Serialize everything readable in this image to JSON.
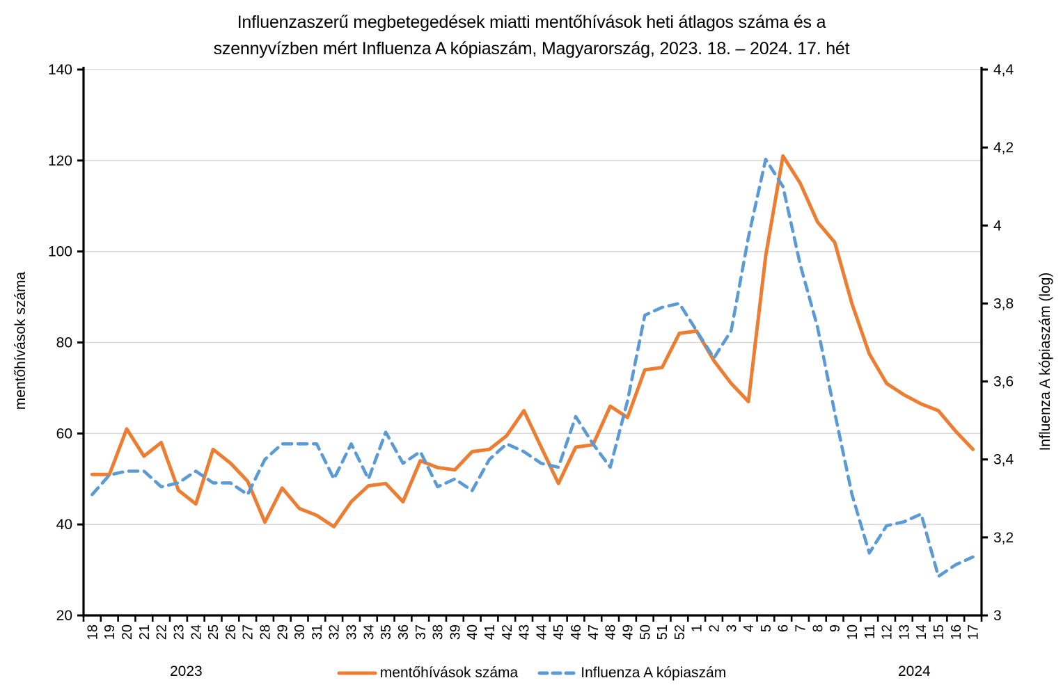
{
  "title": {
    "line1": "Influenzaszerű megbetegedések miatti mentőhívások heti átlagos száma és a",
    "line2": "szennyvízben mért Influenza A kópiaszám, Magyarország, 2023. 18. – 2024. 17. hét"
  },
  "axes": {
    "left": {
      "title": "mentőhívások száma",
      "ticks": [
        {
          "label": "20",
          "value": 20
        },
        {
          "label": "40",
          "value": 40
        },
        {
          "label": "60",
          "value": 60
        },
        {
          "label": "80",
          "value": 80
        },
        {
          "label": "100",
          "value": 100
        },
        {
          "label": "120",
          "value": 120
        },
        {
          "label": "140",
          "value": 140
        }
      ]
    },
    "right": {
      "title": "Influenza A kópiaszám (log)",
      "ticks": [
        {
          "label": "3",
          "value": 3
        },
        {
          "label": "3,2",
          "value": 3.2
        },
        {
          "label": "3,4",
          "value": 3.4
        },
        {
          "label": "3,6",
          "value": 3.6
        },
        {
          "label": "3,8",
          "value": 3.8
        },
        {
          "label": "4",
          "value": 4
        },
        {
          "label": "4,2",
          "value": 4.2
        },
        {
          "label": "4,4",
          "value": 4.4
        }
      ]
    },
    "x": {
      "year_left": "2023",
      "year_right": "2024"
    }
  },
  "legend": [
    {
      "label": "mentőhívások száma",
      "style": "solid",
      "color": "#ED7D31"
    },
    {
      "label": "Influenza A kópiaszám",
      "style": "dashed",
      "color": "#5B9BD5"
    }
  ],
  "colors": {
    "orange": "#ED7D31",
    "blue": "#5B9BD5",
    "gridline": "#D9D9D9",
    "axis": "#000000"
  },
  "chart_data": {
    "type": "line",
    "title": "Influenzaszerű megbetegedések miatti mentőhívások heti átlagos száma és a szennyvízben mért Influenza A kópiaszám, Magyarország, 2023. 18. – 2024. 17. hét",
    "categories": [
      "18",
      "19",
      "20",
      "21",
      "22",
      "23",
      "24",
      "25",
      "26",
      "27",
      "28",
      "29",
      "30",
      "31",
      "32",
      "33",
      "34",
      "35",
      "36",
      "37",
      "38",
      "39",
      "40",
      "41",
      "42",
      "43",
      "44",
      "45",
      "46",
      "47",
      "48",
      "49",
      "50",
      "51",
      "52",
      "1",
      "2",
      "3",
      "4",
      "5",
      "6",
      "7",
      "8",
      "9",
      "10",
      "11",
      "12",
      "13",
      "14",
      "15",
      "16",
      "17"
    ],
    "x_groups": [
      {
        "year": "2023",
        "weeks": "18-52"
      },
      {
        "year": "2024",
        "weeks": "1-17"
      }
    ],
    "series": [
      {
        "name": "mentőhívások száma",
        "axis": "left",
        "style": "solid",
        "color": "#ED7D31",
        "values": [
          51,
          51,
          61,
          55,
          58,
          47.5,
          44.5,
          56.5,
          53.5,
          49.5,
          40.5,
          48,
          43.5,
          42,
          39.5,
          45,
          48.5,
          49,
          45,
          54,
          52.5,
          52,
          56,
          56.5,
          59.5,
          65,
          57,
          49,
          57,
          57.5,
          66,
          63.5,
          74,
          74.5,
          82,
          82.5,
          76,
          71,
          67,
          99,
          121,
          115,
          106.5,
          102,
          88.5,
          77.5,
          71,
          68.5,
          66.5,
          65,
          60.5,
          56.5
        ]
      },
      {
        "name": "Influenza A kópiaszám",
        "axis": "right",
        "style": "dashed",
        "color": "#5B9BD5",
        "values": [
          3.31,
          3.36,
          3.37,
          3.37,
          3.33,
          3.34,
          3.37,
          3.34,
          3.34,
          3.31,
          3.4,
          3.44,
          3.44,
          3.44,
          3.35,
          3.44,
          3.35,
          3.47,
          3.39,
          3.42,
          3.33,
          3.35,
          3.32,
          3.4,
          3.44,
          3.42,
          3.39,
          3.38,
          3.51,
          3.44,
          3.38,
          3.55,
          3.77,
          3.79,
          3.8,
          3.73,
          3.66,
          3.73,
          3.97,
          4.17,
          4.1,
          3.9,
          3.74,
          3.52,
          3.31,
          3.16,
          3.23,
          3.24,
          3.26,
          3.1,
          3.13,
          3.15
        ]
      }
    ],
    "left_ylim": [
      20,
      140
    ],
    "left_tick_step": 20,
    "right_ylim": [
      3,
      4.4
    ],
    "right_tick_step": 0.2,
    "grid": true,
    "legend_position": "bottom"
  }
}
